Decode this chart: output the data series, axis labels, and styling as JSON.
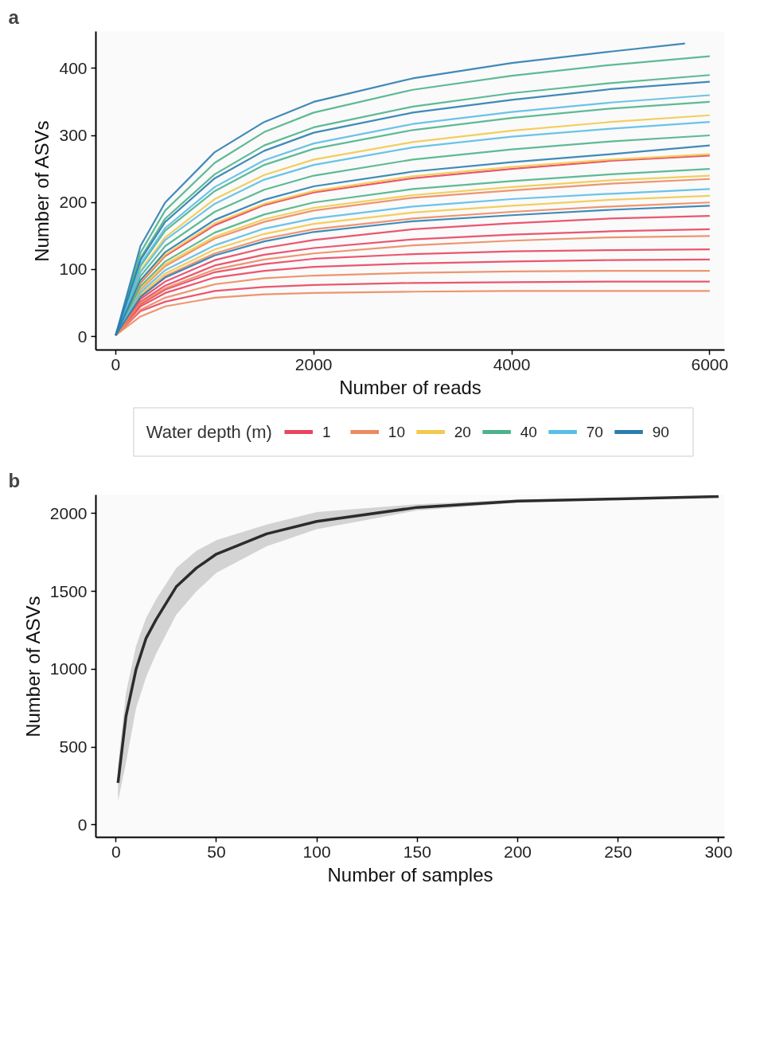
{
  "chart_data": [
    {
      "type": "line",
      "title": "a",
      "xlabel": "Number of reads",
      "ylabel": "Number of ASVs",
      "legend": "bottom",
      "legend_title": "Water depth (m)",
      "xlim": [
        -200,
        6150
      ],
      "ylim": [
        -20,
        455
      ],
      "xticks": [
        0,
        2000,
        4000,
        6000
      ],
      "yticks": [
        0,
        100,
        200,
        300,
        400
      ],
      "x": [
        0,
        250,
        500,
        1000,
        1500,
        2000,
        3000,
        4000,
        5000,
        6000
      ],
      "series": [
        {
          "name": "1",
          "color": "#e8455f",
          "values": [
            2,
            38,
            52,
            68,
            74,
            77,
            80,
            81,
            82,
            82
          ]
        },
        {
          "color": "#e8455f",
          "values": [
            2,
            45,
            65,
            88,
            98,
            104,
            109,
            112,
            114,
            115
          ]
        },
        {
          "color": "#e8455f",
          "values": [
            2,
            48,
            70,
            96,
            108,
            116,
            123,
            127,
            129,
            130
          ]
        },
        {
          "color": "#e8455f",
          "values": [
            2,
            52,
            76,
            106,
            122,
            132,
            145,
            152,
            157,
            160
          ]
        },
        {
          "color": "#e8455f",
          "values": [
            2,
            56,
            82,
            114,
            132,
            144,
            160,
            169,
            176,
            180
          ]
        },
        {
          "color": "#e8455f",
          "values": [
            2,
            80,
            120,
            166,
            196,
            215,
            236,
            250,
            262,
            270
          ]
        },
        {
          "name": "10",
          "color": "#ec8a60",
          "values": [
            2,
            30,
            45,
            58,
            63,
            65,
            67,
            68,
            68,
            68
          ]
        },
        {
          "color": "#ec8a60",
          "values": [
            2,
            40,
            58,
            78,
            87,
            91,
            95,
            97,
            98,
            98
          ]
        },
        {
          "color": "#ec8a60",
          "values": [
            2,
            50,
            72,
            100,
            115,
            124,
            136,
            143,
            148,
            150
          ]
        },
        {
          "color": "#ec8a60",
          "values": [
            2,
            60,
            90,
            124,
            146,
            160,
            176,
            186,
            194,
            200
          ]
        },
        {
          "color": "#ec8a60",
          "values": [
            2,
            70,
            105,
            146,
            171,
            188,
            207,
            218,
            228,
            235
          ]
        },
        {
          "name": "20",
          "color": "#f2c94c",
          "values": [
            2,
            63,
            94,
            130,
            153,
            168,
            185,
            195,
            204,
            210
          ]
        },
        {
          "color": "#f2c94c",
          "values": [
            2,
            72,
            108,
            149,
            175,
            192,
            211,
            223,
            233,
            240
          ]
        },
        {
          "color": "#f2c94c",
          "values": [
            2,
            82,
            122,
            169,
            198,
            217,
            239,
            253,
            264,
            272
          ]
        },
        {
          "color": "#f2c94c",
          "values": [
            2,
            99,
            148,
            205,
            241,
            264,
            290,
            307,
            320,
            330
          ]
        },
        {
          "name": "40",
          "color": "#4db38a",
          "values": [
            2,
            75,
            112,
            155,
            182,
            200,
            220,
            232,
            242,
            250
          ]
        },
        {
          "color": "#4db38a",
          "values": [
            2,
            90,
            135,
            186,
            219,
            240,
            264,
            279,
            291,
            300
          ]
        },
        {
          "color": "#4db38a",
          "values": [
            2,
            105,
            158,
            217,
            256,
            280,
            308,
            326,
            340,
            350
          ]
        },
        {
          "color": "#4db38a",
          "values": [
            2,
            117,
            176,
            242,
            285,
            312,
            343,
            363,
            378,
            390
          ]
        },
        {
          "color": "#4db38a",
          "values": [
            2,
            125,
            188,
            259,
            305,
            334,
            368,
            389,
            405,
            418
          ]
        },
        {
          "name": "70",
          "color": "#5bbde6",
          "values": [
            2,
            66,
            99,
            136,
            161,
            176,
            194,
            205,
            213,
            220
          ]
        },
        {
          "color": "#5bbde6",
          "values": [
            2,
            96,
            144,
            198,
            234,
            256,
            282,
            298,
            310,
            320
          ]
        },
        {
          "color": "#5bbde6",
          "values": [
            2,
            108,
            162,
            223,
            263,
            288,
            317,
            335,
            349,
            360
          ]
        },
        {
          "name": "90",
          "color": "#2b7db0",
          "values": [
            2,
            59,
            88,
            121,
            142,
            156,
            172,
            181,
            189,
            195
          ]
        },
        {
          "color": "#2b7db0",
          "values": [
            2,
            84,
            126,
            174,
            204,
            224,
            246,
            260,
            272,
            285
          ]
        },
        {
          "color": "#2b7db0",
          "values": [
            2,
            114,
            171,
            236,
            277,
            304,
            334,
            353,
            369,
            380
          ]
        },
        {
          "color": "#2b7db0",
          "x": [
            0,
            250,
            500,
            1000,
            1500,
            2000,
            3000,
            4000,
            5000,
            5750
          ],
          "values": [
            2,
            135,
            200,
            275,
            320,
            350,
            385,
            408,
            425,
            437
          ]
        }
      ]
    },
    {
      "type": "line",
      "title": "b",
      "xlabel": "Number of samples",
      "ylabel": "Number of ASVs",
      "xlim": [
        -10,
        303
      ],
      "ylim": [
        -80,
        2120
      ],
      "xticks": [
        0,
        50,
        100,
        150,
        200,
        250,
        300
      ],
      "yticks": [
        0,
        500,
        1000,
        1500,
        2000
      ],
      "x": [
        1,
        5,
        10,
        15,
        20,
        30,
        40,
        50,
        75,
        100,
        150,
        200,
        250,
        300
      ],
      "series": [
        {
          "color": "#1a1a1a",
          "values": [
            270,
            700,
            1000,
            1200,
            1320,
            1530,
            1650,
            1740,
            1870,
            1950,
            2040,
            2080,
            2095,
            2110
          ],
          "lower": [
            150,
            400,
            750,
            950,
            1100,
            1350,
            1500,
            1620,
            1790,
            1900,
            2020,
            2070,
            2090,
            2110
          ],
          "upper": [
            380,
            850,
            1150,
            1330,
            1450,
            1650,
            1760,
            1830,
            1930,
            2010,
            2060,
            2090,
            2100,
            2110
          ]
        }
      ]
    }
  ]
}
